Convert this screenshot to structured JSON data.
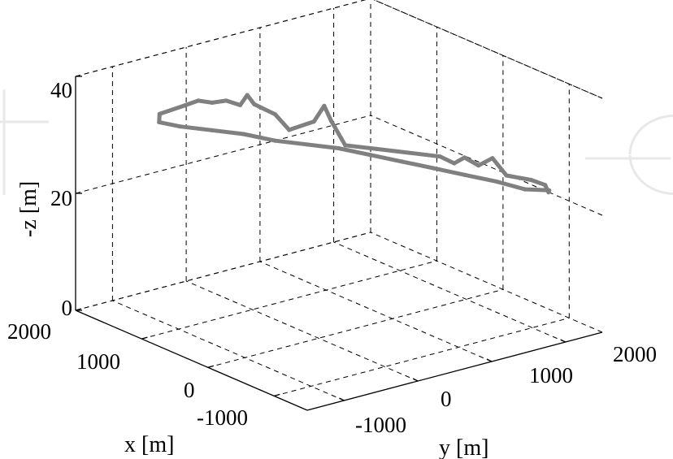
{
  "chart_data": {
    "type": "line",
    "plot3d": true,
    "xlabel": "x [m]",
    "ylabel": "y [m]",
    "zlabel": "-z [m]",
    "x_ticks": [
      "2000",
      "1000",
      "0",
      "-1000"
    ],
    "y_ticks": [
      "-1000",
      "0",
      "1000",
      "2000"
    ],
    "z_ticks": [
      "0",
      "20",
      "40"
    ],
    "xlim": [
      -1500,
      2000
    ],
    "ylim": [
      -1500,
      2500
    ],
    "zlim": [
      0,
      40
    ],
    "grid": true,
    "series": [
      {
        "color": "#808080",
        "points": [
          [
            -1000,
            1900,
            24
          ],
          [
            -800,
            1700,
            25
          ],
          [
            -600,
            1450,
            26
          ],
          [
            -400,
            1200,
            27
          ],
          [
            -200,
            950,
            28
          ],
          [
            0,
            700,
            29
          ],
          [
            200,
            450,
            30
          ],
          [
            400,
            200,
            30.5
          ],
          [
            600,
            -50,
            31
          ],
          [
            800,
            -300,
            32
          ],
          [
            1000,
            -550,
            32.5
          ],
          [
            1200,
            -800,
            33
          ],
          [
            1350,
            -950,
            33.5
          ],
          [
            1400,
            -900,
            34.5
          ],
          [
            1250,
            -700,
            36
          ],
          [
            1150,
            -600,
            37
          ],
          [
            1050,
            -500,
            36.8
          ],
          [
            950,
            -400,
            37.3
          ],
          [
            850,
            -300,
            36.7
          ],
          [
            800,
            -250,
            38.5
          ],
          [
            750,
            -200,
            37
          ],
          [
            700,
            -150,
            36.5
          ],
          [
            600,
            -50,
            35.5
          ],
          [
            500,
            50,
            33
          ],
          [
            350,
            250,
            34.5
          ],
          [
            250,
            300,
            37.5
          ],
          [
            200,
            350,
            35
          ],
          [
            100,
            450,
            31
          ],
          [
            -100,
            700,
            30.5
          ],
          [
            -300,
            950,
            30
          ],
          [
            -500,
            1200,
            29.5
          ],
          [
            -600,
            1300,
            28.5
          ],
          [
            -700,
            1350,
            29.8
          ],
          [
            -800,
            1450,
            28.6
          ],
          [
            -900,
            1550,
            30
          ],
          [
            -1000,
            1650,
            27.2
          ],
          [
            -1150,
            1850,
            26.5
          ],
          [
            -1250,
            1950,
            25.8
          ],
          [
            -1300,
            1950,
            24.8
          ],
          [
            -1200,
            2050,
            24.3
          ],
          [
            -1000,
            1900,
            24
          ]
        ]
      }
    ]
  }
}
